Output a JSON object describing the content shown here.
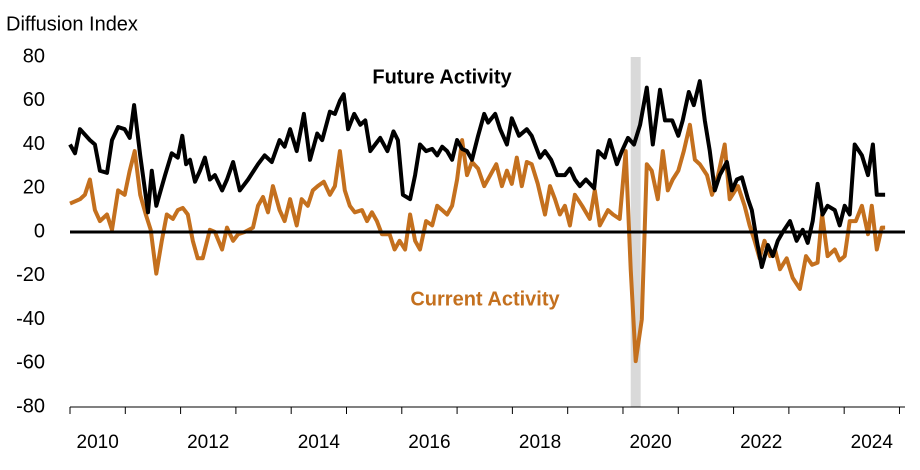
{
  "chart_data": {
    "type": "line",
    "y_axis_label": "Diffusion Index",
    "annotations": [
      {
        "text": "Future Activity",
        "series": 0
      },
      {
        "text": "Current Activity",
        "series": 1
      }
    ],
    "xlim": [
      2010,
      2025.1
    ],
    "xticks": [
      2010,
      2012,
      2014,
      2016,
      2018,
      2020,
      2022,
      2024
    ],
    "ylim": [
      -80,
      80
    ],
    "yticks": [
      80,
      60,
      40,
      20,
      0,
      -20,
      -40,
      -60,
      -80
    ],
    "shaded_range": [
      2020.14,
      2020.32
    ],
    "shade_color": "#d9d9d9",
    "series": [
      {
        "name": "Future Activity",
        "color": "#000000",
        "x": [
          2010.0,
          2010.09,
          2010.18,
          2010.36,
          2010.45,
          2010.54,
          2010.67,
          2010.76,
          2010.87,
          2010.99,
          2011.08,
          2011.16,
          2011.27,
          2011.41,
          2011.48,
          2011.56,
          2011.72,
          2011.84,
          2011.95,
          2012.03,
          2012.1,
          2012.17,
          2012.26,
          2012.35,
          2012.44,
          2012.53,
          2012.62,
          2012.75,
          2012.84,
          2012.95,
          2013.07,
          2013.22,
          2013.4,
          2013.52,
          2013.65,
          2013.79,
          2013.88,
          2013.98,
          2014.1,
          2014.23,
          2014.34,
          2014.47,
          2014.56,
          2014.7,
          2014.79,
          2014.88,
          2014.95,
          2015.03,
          2015.14,
          2015.25,
          2015.34,
          2015.43,
          2015.52,
          2015.61,
          2015.74,
          2015.85,
          2015.93,
          2016.02,
          2016.15,
          2016.24,
          2016.33,
          2016.44,
          2016.55,
          2016.64,
          2016.73,
          2016.82,
          2016.91,
          2017.0,
          2017.09,
          2017.18,
          2017.27,
          2017.38,
          2017.49,
          2017.56,
          2017.69,
          2017.78,
          2017.9,
          2017.99,
          2018.12,
          2018.26,
          2018.35,
          2018.5,
          2018.59,
          2018.7,
          2018.81,
          2018.95,
          2019.04,
          2019.13,
          2019.22,
          2019.33,
          2019.48,
          2019.55,
          2019.67,
          2019.76,
          2019.89,
          2019.98,
          2020.09,
          2020.2,
          2020.31,
          2020.43,
          2020.54,
          2020.67,
          2020.76,
          2020.89,
          2021.0,
          2021.08,
          2021.19,
          2021.28,
          2021.39,
          2021.48,
          2021.57,
          2021.66,
          2021.75,
          2021.88,
          2021.97,
          2022.06,
          2022.15,
          2022.26,
          2022.33,
          2022.42,
          2022.51,
          2022.62,
          2022.71,
          2022.8,
          2022.89,
          2023.02,
          2023.14,
          2023.25,
          2023.34,
          2023.43,
          2023.52,
          2023.61,
          2023.7,
          2023.83,
          2023.92,
          2024.01,
          2024.1,
          2024.19,
          2024.32,
          2024.43,
          2024.52,
          2024.59,
          2024.74
        ],
        "values": [
          40,
          36,
          47,
          42,
          40,
          28,
          27,
          42,
          48,
          47,
          43,
          58,
          35,
          9,
          28,
          12,
          26,
          36,
          34,
          44,
          31,
          33,
          23,
          28,
          34,
          24,
          26,
          19,
          24,
          32,
          19,
          24,
          31,
          35,
          32,
          42,
          39,
          47,
          37,
          54,
          33,
          45,
          42,
          55,
          54,
          60,
          63,
          47,
          54,
          49,
          51,
          37,
          40,
          43,
          37,
          46,
          42,
          17,
          15,
          26,
          40,
          37,
          38,
          35,
          39,
          37,
          33,
          42,
          38,
          37,
          33,
          44,
          54,
          50,
          54,
          47,
          40,
          52,
          44,
          47,
          44,
          34,
          37,
          33,
          26,
          26,
          29,
          24,
          21,
          24,
          20,
          37,
          34,
          42,
          31,
          37,
          43,
          40,
          49,
          66,
          40,
          65,
          51,
          51,
          44,
          51,
          64,
          58,
          69,
          51,
          37,
          19,
          26,
          32,
          19,
          24,
          25,
          15,
          10,
          -4,
          -16,
          -6,
          -11,
          -4,
          0,
          5,
          -4,
          1,
          -5,
          5,
          22,
          8,
          12,
          10,
          3,
          12,
          8,
          40,
          35,
          26,
          40,
          17,
          17
        ]
      },
      {
        "name": "Current Activity",
        "color": "#c4701e",
        "x": [
          2010.0,
          2010.18,
          2010.27,
          2010.36,
          2010.45,
          2010.54,
          2010.67,
          2010.76,
          2010.87,
          2010.99,
          2011.08,
          2011.17,
          2011.27,
          2011.37,
          2011.46,
          2011.56,
          2011.66,
          2011.75,
          2011.86,
          2011.95,
          2012.04,
          2012.13,
          2012.22,
          2012.31,
          2012.4,
          2012.53,
          2012.62,
          2012.75,
          2012.84,
          2012.95,
          2013.04,
          2013.16,
          2013.31,
          2013.4,
          2013.49,
          2013.58,
          2013.67,
          2013.79,
          2013.88,
          2013.98,
          2014.1,
          2014.19,
          2014.3,
          2014.39,
          2014.48,
          2014.59,
          2014.7,
          2014.79,
          2014.88,
          2014.97,
          2015.06,
          2015.15,
          2015.28,
          2015.37,
          2015.46,
          2015.55,
          2015.64,
          2015.78,
          2015.87,
          2015.96,
          2016.06,
          2016.15,
          2016.24,
          2016.33,
          2016.44,
          2016.55,
          2016.64,
          2016.73,
          2016.82,
          2016.91,
          2017.0,
          2017.09,
          2017.18,
          2017.27,
          2017.38,
          2017.49,
          2017.6,
          2017.71,
          2017.81,
          2017.9,
          2017.99,
          2018.08,
          2018.17,
          2018.26,
          2018.35,
          2018.46,
          2018.59,
          2018.68,
          2018.77,
          2018.86,
          2018.95,
          2019.04,
          2019.13,
          2019.26,
          2019.4,
          2019.49,
          2019.58,
          2019.73,
          2019.82,
          2019.94,
          2020.05,
          2020.14,
          2020.23,
          2020.34,
          2020.43,
          2020.52,
          2020.63,
          2020.72,
          2020.81,
          2020.9,
          2021.0,
          2021.1,
          2021.21,
          2021.3,
          2021.39,
          2021.52,
          2021.61,
          2021.72,
          2021.84,
          2021.93,
          2022.08,
          2022.2,
          2022.29,
          2022.38,
          2022.47,
          2022.56,
          2022.66,
          2022.75,
          2022.84,
          2022.96,
          2023.07,
          2023.2,
          2023.31,
          2023.42,
          2023.52,
          2023.6,
          2023.7,
          2023.83,
          2023.92,
          2024.01,
          2024.1,
          2024.21,
          2024.32,
          2024.43,
          2024.5,
          2024.59,
          2024.68,
          2024.74
        ],
        "values": [
          13,
          15,
          17,
          24,
          10,
          5,
          8,
          1,
          19,
          17,
          28,
          37,
          17,
          8,
          1,
          -19,
          -4,
          8,
          6,
          10,
          11,
          8,
          -4,
          -12,
          -12,
          1,
          0,
          -8,
          2,
          -4,
          -1,
          0,
          2,
          12,
          16,
          9,
          21,
          10,
          5,
          15,
          3,
          15,
          12,
          19,
          21,
          23,
          17,
          21,
          37,
          19,
          12,
          9,
          10,
          5,
          9,
          5,
          -1,
          -1,
          -8,
          -4,
          -8,
          8,
          -4,
          -8,
          5,
          3,
          12,
          10,
          8,
          12,
          24,
          42,
          26,
          32,
          29,
          21,
          26,
          31,
          21,
          28,
          22,
          34,
          21,
          32,
          31,
          22,
          8,
          21,
          15,
          8,
          12,
          3,
          17,
          12,
          6,
          19,
          3,
          10,
          8,
          6,
          37,
          -17,
          -59,
          -40,
          31,
          28,
          15,
          37,
          19,
          24,
          28,
          37,
          49,
          33,
          31,
          26,
          17,
          26,
          40,
          15,
          21,
          12,
          3,
          -4,
          -12,
          -4,
          -11,
          -8,
          -17,
          -12,
          -21,
          -26,
          -11,
          -15,
          -14,
          8,
          -11,
          -8,
          -13,
          -11,
          5,
          5,
          12,
          -1,
          12,
          -8,
          2,
          2
        ]
      }
    ]
  }
}
